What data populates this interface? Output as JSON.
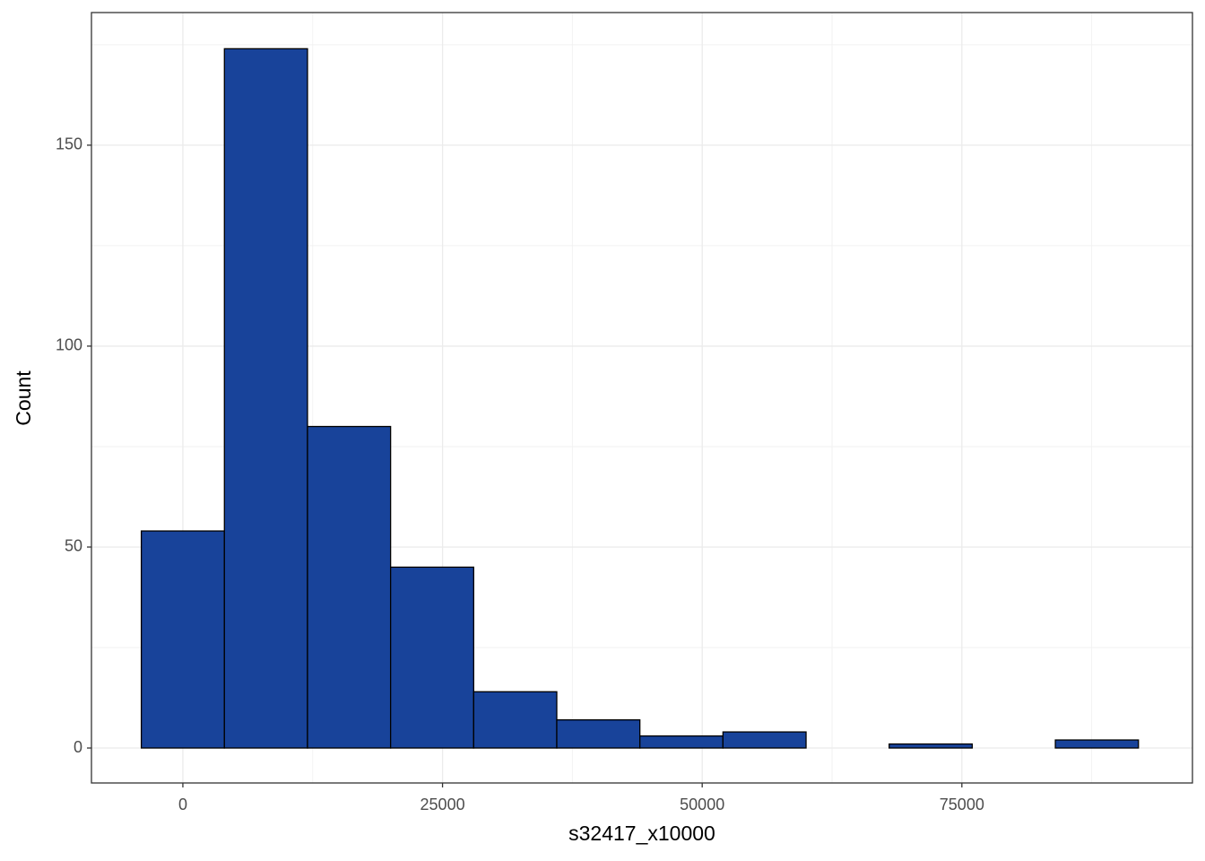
{
  "chart_data": {
    "type": "histogram",
    "x_label": "s32417_x10000",
    "y_label": "Count",
    "bins": [
      -4000,
      4000,
      12000,
      20000,
      28000,
      36000,
      44000,
      52000,
      60000,
      68000,
      76000,
      84000,
      92000
    ],
    "counts": [
      54,
      174,
      80,
      45,
      14,
      7,
      3,
      4,
      0,
      1,
      0,
      2
    ],
    "color": "#18439a",
    "xlim": [
      -8800,
      97200
    ],
    "ylim": [
      -8.7,
      183
    ],
    "xticks": [
      0,
      25000,
      50000,
      75000
    ],
    "yticks": [
      0,
      50,
      100,
      150
    ],
    "grid": true
  }
}
